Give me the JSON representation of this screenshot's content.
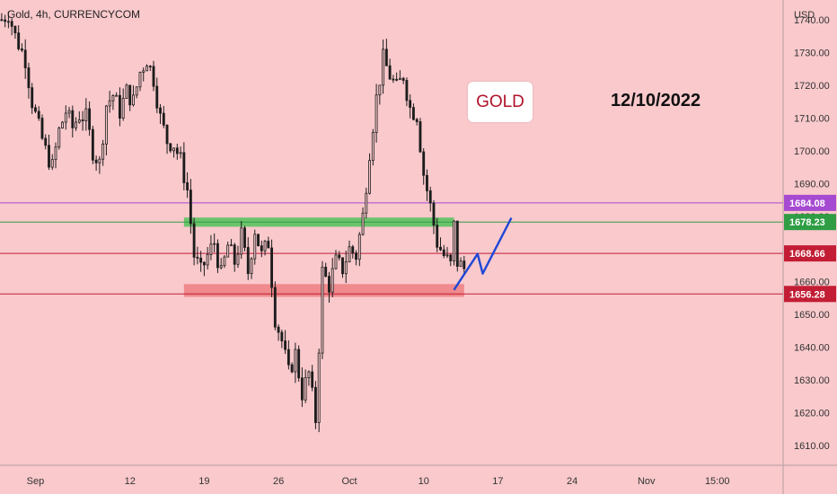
{
  "header": {
    "symbol_title": "Gold, 4h, CURRENCYCOM"
  },
  "annotations": {
    "gold_label": "GOLD",
    "date_label": "12/10/2022"
  },
  "chart_data": {
    "type": "candlestick",
    "title": "Gold, 4h, CURRENCYCOM",
    "currency_label": "USD",
    "ylim": [
      1604,
      1746
    ],
    "y_ticks": [
      1740,
      1730,
      1720,
      1710,
      1700,
      1690,
      1680,
      1670,
      1660,
      1650,
      1640,
      1630,
      1620,
      1610
    ],
    "y_tick_labels": [
      "1740.00",
      "1730.00",
      "1720.00",
      "1710.00",
      "1700.00",
      "1690.00",
      "1680.00",
      "1670.00",
      "1660.00",
      "1650.00",
      "1640.00",
      "1630.00",
      "1620.00",
      "1610.00"
    ],
    "x_ticks": [
      {
        "label": "Sep",
        "index": 10
      },
      {
        "label": "12",
        "index": 38
      },
      {
        "label": "19",
        "index": 60
      },
      {
        "label": "26",
        "index": 82
      },
      {
        "label": "Oct",
        "index": 103
      },
      {
        "label": "10",
        "index": 125
      },
      {
        "label": "17",
        "index": 147
      },
      {
        "label": "24",
        "index": 169
      },
      {
        "label": "Nov",
        "index": 191
      },
      {
        "label": "15:00",
        "index": 212
      }
    ],
    "bars_total": 232,
    "close_path": [
      [
        0,
        1740
      ],
      [
        2,
        1742
      ],
      [
        4,
        1735
      ],
      [
        7,
        1728
      ],
      [
        9,
        1715
      ],
      [
        11,
        1707
      ],
      [
        13,
        1700
      ],
      [
        15,
        1695
      ],
      [
        17,
        1706
      ],
      [
        19,
        1712
      ],
      [
        21,
        1707
      ],
      [
        23,
        1711
      ],
      [
        25,
        1710
      ],
      [
        27,
        1700
      ],
      [
        29,
        1696
      ],
      [
        31,
        1714
      ],
      [
        33,
        1717
      ],
      [
        35,
        1712
      ],
      [
        37,
        1718
      ],
      [
        39,
        1715
      ],
      [
        41,
        1724
      ],
      [
        43,
        1728
      ],
      [
        45,
        1722
      ],
      [
        47,
        1710
      ],
      [
        49,
        1703
      ],
      [
        51,
        1702
      ],
      [
        53,
        1697
      ],
      [
        55,
        1688
      ],
      [
        57,
        1668
      ],
      [
        59,
        1663
      ],
      [
        61,
        1668
      ],
      [
        63,
        1672
      ],
      [
        65,
        1662
      ],
      [
        67,
        1671
      ],
      [
        69,
        1666
      ],
      [
        71,
        1674
      ],
      [
        73,
        1663
      ],
      [
        75,
        1676
      ],
      [
        77,
        1668
      ],
      [
        79,
        1672
      ],
      [
        81,
        1649
      ],
      [
        83,
        1642
      ],
      [
        85,
        1632
      ],
      [
        87,
        1638
      ],
      [
        89,
        1626
      ],
      [
        91,
        1632
      ],
      [
        93,
        1618
      ],
      [
        95,
        1663
      ],
      [
        97,
        1659
      ],
      [
        99,
        1666
      ],
      [
        101,
        1664
      ],
      [
        103,
        1670
      ],
      [
        105,
        1668
      ],
      [
        107,
        1680
      ],
      [
        109,
        1700
      ],
      [
        111,
        1716
      ],
      [
        113,
        1728
      ],
      [
        115,
        1723
      ],
      [
        117,
        1719
      ],
      [
        119,
        1723
      ],
      [
        121,
        1713
      ],
      [
        123,
        1711
      ],
      [
        125,
        1693
      ],
      [
        127,
        1683
      ],
      [
        129,
        1672
      ],
      [
        131,
        1668
      ],
      [
        133,
        1665
      ],
      [
        134,
        1677
      ],
      [
        135,
        1666
      ],
      [
        137,
        1664
      ]
    ],
    "horizontal_lines": [
      {
        "value": 1684.08,
        "color": "#a64bd1",
        "label": "1684.08"
      },
      {
        "value": 1678.23,
        "color": "#2e9d44",
        "label": "1678.23"
      },
      {
        "value": 1668.66,
        "color": "#c21d34",
        "label": "1668.66"
      },
      {
        "value": 1656.28,
        "color": "#c21d34",
        "label": "1656.28"
      }
    ],
    "zones": [
      {
        "name": "resistance-zone",
        "from_index": 54,
        "to_index": 134,
        "y_low": 1676.8,
        "y_high": 1679.6,
        "color": "#6cc36c"
      },
      {
        "name": "support-zone",
        "from_index": 54,
        "to_index": 137,
        "y_low": 1655.4,
        "y_high": 1659.3,
        "color": "#f08a8c"
      }
    ],
    "projection_path": [
      [
        134,
        1657.5
      ],
      [
        141,
        1668.5
      ],
      [
        142.5,
        1662.5
      ],
      [
        151,
        1679.5
      ]
    ],
    "colors": {
      "up": "#1d1d1d",
      "down": "#1d1d1d",
      "projection": "#1f47d6",
      "grid_background": "#f9c9cc"
    }
  }
}
